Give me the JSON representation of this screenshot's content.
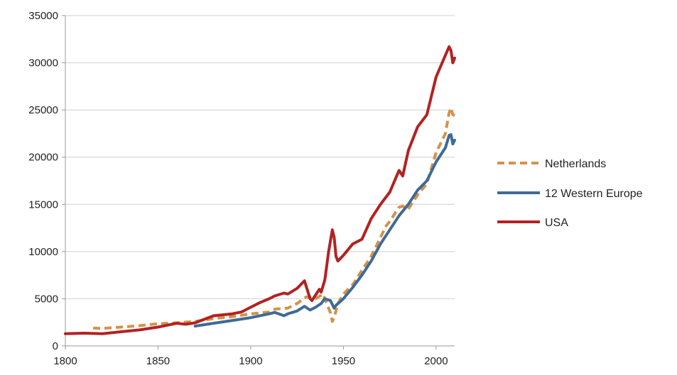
{
  "chart_data": {
    "type": "line",
    "title": "",
    "xlabel": "",
    "ylabel": "",
    "xlim": [
      1800,
      2010
    ],
    "ylim": [
      0,
      35000
    ],
    "xticks": [
      "1800",
      "1850",
      "1900",
      "1950",
      "2000"
    ],
    "yticks": [
      "0",
      "5000",
      "10000",
      "15000",
      "20000",
      "25000",
      "30000",
      "35000"
    ],
    "grid": "horizontal",
    "legend_position": "right",
    "series": [
      {
        "name": "Netherlands",
        "color": "#d4924a",
        "style": "dashed",
        "points": [
          [
            1815,
            1900
          ],
          [
            1820,
            1850
          ],
          [
            1830,
            2000
          ],
          [
            1840,
            2150
          ],
          [
            1850,
            2350
          ],
          [
            1860,
            2450
          ],
          [
            1870,
            2600
          ],
          [
            1880,
            2900
          ],
          [
            1890,
            3100
          ],
          [
            1900,
            3400
          ],
          [
            1910,
            3600
          ],
          [
            1913,
            3900
          ],
          [
            1920,
            4000
          ],
          [
            1925,
            4500
          ],
          [
            1930,
            5200
          ],
          [
            1935,
            5000
          ],
          [
            1939,
            5500
          ],
          [
            1941,
            4500
          ],
          [
            1943,
            3500
          ],
          [
            1944,
            2600
          ],
          [
            1945,
            3000
          ],
          [
            1947,
            4500
          ],
          [
            1950,
            5500
          ],
          [
            1955,
            6500
          ],
          [
            1960,
            8000
          ],
          [
            1965,
            9500
          ],
          [
            1970,
            11500
          ],
          [
            1973,
            12700
          ],
          [
            1975,
            13200
          ],
          [
            1980,
            14700
          ],
          [
            1982,
            14800
          ],
          [
            1985,
            14500
          ],
          [
            1990,
            16000
          ],
          [
            1995,
            17200
          ],
          [
            2000,
            20500
          ],
          [
            2005,
            22500
          ],
          [
            2007,
            24700
          ],
          [
            2008,
            25200
          ],
          [
            2009,
            24500
          ],
          [
            2010,
            24400
          ]
        ]
      },
      {
        "name": "12 Western Europe",
        "color": "#3e6b97",
        "style": "solid",
        "points": [
          [
            1870,
            2100
          ],
          [
            1880,
            2400
          ],
          [
            1890,
            2700
          ],
          [
            1900,
            3000
          ],
          [
            1910,
            3400
          ],
          [
            1913,
            3550
          ],
          [
            1918,
            3200
          ],
          [
            1920,
            3400
          ],
          [
            1925,
            3700
          ],
          [
            1929,
            4200
          ],
          [
            1932,
            3800
          ],
          [
            1935,
            4100
          ],
          [
            1938,
            4500
          ],
          [
            1940,
            5000
          ],
          [
            1943,
            4800
          ],
          [
            1945,
            4000
          ],
          [
            1946,
            4300
          ],
          [
            1950,
            5000
          ],
          [
            1955,
            6200
          ],
          [
            1960,
            7500
          ],
          [
            1965,
            9000
          ],
          [
            1970,
            10800
          ],
          [
            1975,
            12300
          ],
          [
            1980,
            13800
          ],
          [
            1985,
            15000
          ],
          [
            1990,
            16500
          ],
          [
            1995,
            17500
          ],
          [
            2000,
            19500
          ],
          [
            2005,
            21000
          ],
          [
            2007,
            22300
          ],
          [
            2008,
            22400
          ],
          [
            2009,
            21400
          ],
          [
            2010,
            21800
          ]
        ]
      },
      {
        "name": "USA",
        "color": "#b22222",
        "style": "solid",
        "points": [
          [
            1800,
            1300
          ],
          [
            1810,
            1350
          ],
          [
            1820,
            1300
          ],
          [
            1830,
            1500
          ],
          [
            1840,
            1700
          ],
          [
            1850,
            2000
          ],
          [
            1860,
            2400
          ],
          [
            1865,
            2300
          ],
          [
            1870,
            2450
          ],
          [
            1880,
            3200
          ],
          [
            1890,
            3400
          ],
          [
            1895,
            3600
          ],
          [
            1900,
            4100
          ],
          [
            1905,
            4600
          ],
          [
            1910,
            5000
          ],
          [
            1913,
            5300
          ],
          [
            1918,
            5600
          ],
          [
            1920,
            5500
          ],
          [
            1925,
            6100
          ],
          [
            1929,
            6900
          ],
          [
            1932,
            5000
          ],
          [
            1933,
            4800
          ],
          [
            1937,
            6000
          ],
          [
            1938,
            5700
          ],
          [
            1940,
            7000
          ],
          [
            1942,
            10000
          ],
          [
            1944,
            12300
          ],
          [
            1945,
            11500
          ],
          [
            1946,
            9500
          ],
          [
            1947,
            9000
          ],
          [
            1950,
            9600
          ],
          [
            1955,
            10800
          ],
          [
            1960,
            11300
          ],
          [
            1965,
            13500
          ],
          [
            1970,
            15000
          ],
          [
            1975,
            16300
          ],
          [
            1980,
            18600
          ],
          [
            1982,
            18000
          ],
          [
            1985,
            20700
          ],
          [
            1990,
            23200
          ],
          [
            1995,
            24500
          ],
          [
            2000,
            28500
          ],
          [
            2005,
            30800
          ],
          [
            2007,
            31700
          ],
          [
            2008,
            31300
          ],
          [
            2009,
            30000
          ],
          [
            2010,
            30500
          ]
        ]
      }
    ]
  }
}
